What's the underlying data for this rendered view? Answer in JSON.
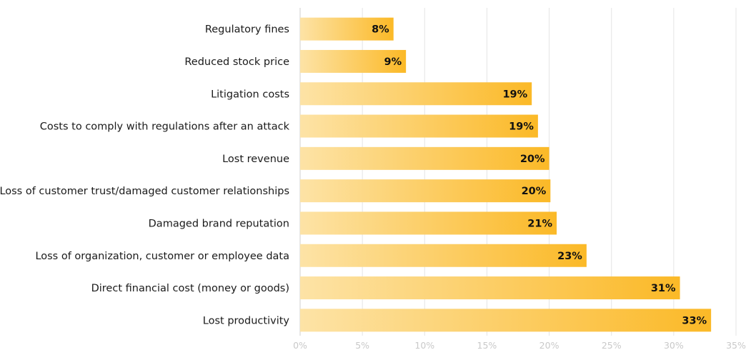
{
  "chart_data": {
    "type": "bar",
    "orientation": "horizontal",
    "categories": [
      "Regulatory fines",
      "Reduced stock price",
      "Litigation costs",
      "Costs to comply with regulations after an attack",
      "Lost revenue",
      "Loss of customer trust/damaged customer relationships",
      "Damaged brand reputation",
      "Loss of organization, customer or employee data",
      "Direct financial cost (money or goods)",
      "Lost productivity"
    ],
    "values": [
      7.5,
      8.5,
      18.6,
      19.1,
      20.0,
      20.1,
      20.6,
      23.0,
      30.5,
      33.0
    ],
    "value_labels": [
      "8%",
      "9%",
      "19%",
      "19%",
      "20%",
      "20%",
      "21%",
      "23%",
      "31%",
      "33%"
    ],
    "x_ticks": [
      "0%",
      "5%",
      "10%",
      "15%",
      "20%",
      "25%",
      "30%",
      "35%"
    ],
    "xlim": [
      0,
      35
    ],
    "grid": true,
    "legend": "none",
    "title": "",
    "xlabel": "",
    "ylabel": "",
    "colors": {
      "bar_light": "#fde3a6",
      "bar_dark": "#fbb927",
      "grid": "#e4e4e4",
      "tick_text": "#c9c9c9"
    }
  }
}
